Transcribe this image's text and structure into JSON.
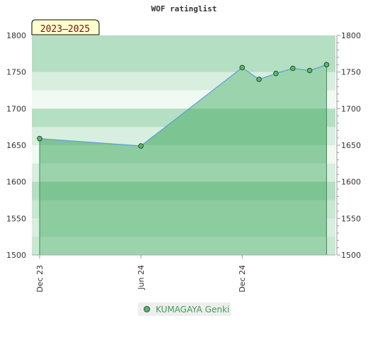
{
  "chart_data": {
    "type": "area",
    "title": "WOF ratinglist",
    "period_badge": "2023–2025",
    "x_ticks": [
      "Dec 23",
      "Jun 24",
      "Dec 24"
    ],
    "ylim": [
      1500,
      1800
    ],
    "y_ticks": [
      1500,
      1550,
      1600,
      1650,
      1700,
      1750,
      1800
    ],
    "series": [
      {
        "name": "KUMAGAYA Genki",
        "color": "#5cb770",
        "points": [
          {
            "x": "2023-12",
            "y": 1659
          },
          {
            "x": "2024-06",
            "y": 1649
          },
          {
            "x": "2024-12",
            "y": 1756
          },
          {
            "x": "2025-01",
            "y": 1740
          },
          {
            "x": "2025-02",
            "y": 1748
          },
          {
            "x": "2025-03",
            "y": 1755
          },
          {
            "x": "2025-04",
            "y": 1752
          },
          {
            "x": "2025-05",
            "y": 1760
          }
        ]
      }
    ],
    "legend": "bottom-center",
    "grid": true
  }
}
